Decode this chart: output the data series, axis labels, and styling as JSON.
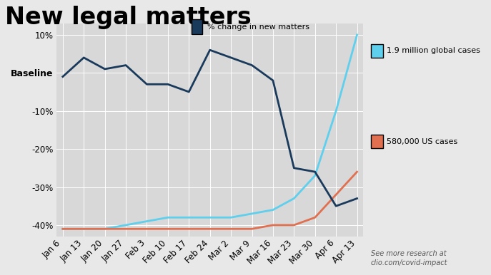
{
  "title": "New legal matters",
  "legend_dark_label": "% change in new matters",
  "legend_cyan_label": "1.9 million global cases",
  "legend_orange_label": "580,000 US cases",
  "footer_text": "See more research at\nclio.com/covid-impact",
  "x_labels": [
    "Jan 6",
    "Jan 13",
    "Jan 20",
    "Jan 27",
    "Feb 3",
    "Feb 10",
    "Feb 17",
    "Feb 24",
    "Mar 2",
    "Mar 9",
    "Mar 16",
    "Mar 23",
    "Mar 30",
    "Apr 6",
    "Apr 13"
  ],
  "dark_line": [
    -1,
    4,
    1,
    2,
    -3,
    -3,
    -5,
    6,
    4,
    2,
    -2,
    -25,
    -26,
    -35,
    -33
  ],
  "cyan_line": [
    -41,
    -41,
    -41,
    -40,
    -39,
    -38,
    -38,
    -38,
    -38,
    -37,
    -36,
    -33,
    -27,
    -10,
    10
  ],
  "orange_line": [
    -41,
    -41,
    -41,
    -41,
    -41,
    -41,
    -41,
    -41,
    -41,
    -41,
    -40,
    -40,
    -38,
    -32,
    -26
  ],
  "dark_color": "#1a3a5c",
  "cyan_color": "#5ecfed",
  "orange_color": "#e07050",
  "background_color": "#e8e8e8",
  "plot_bg_color": "#d8d8d8",
  "top_bar_color": "#c0392b",
  "ylim": [
    -43,
    13
  ],
  "yticks": [
    10,
    0,
    -10,
    -20,
    -30,
    -40
  ],
  "title_fontsize": 24,
  "axis_fontsize": 8.5
}
